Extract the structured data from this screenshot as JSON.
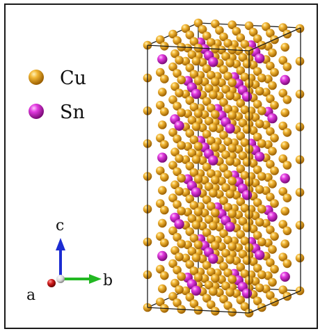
{
  "legend": [
    {
      "element": "Cu",
      "label": "Cu",
      "color": "#e29c14"
    },
    {
      "element": "Sn",
      "label": "Sn",
      "color": "#d020c8"
    }
  ],
  "axes": {
    "a": {
      "label": "a",
      "color": "#c81c1c"
    },
    "b": {
      "label": "b",
      "color": "#22b822"
    },
    "c": {
      "label": "c",
      "color": "#1c2cd2"
    }
  },
  "cell_edge_color": "#1a1a1a"
}
